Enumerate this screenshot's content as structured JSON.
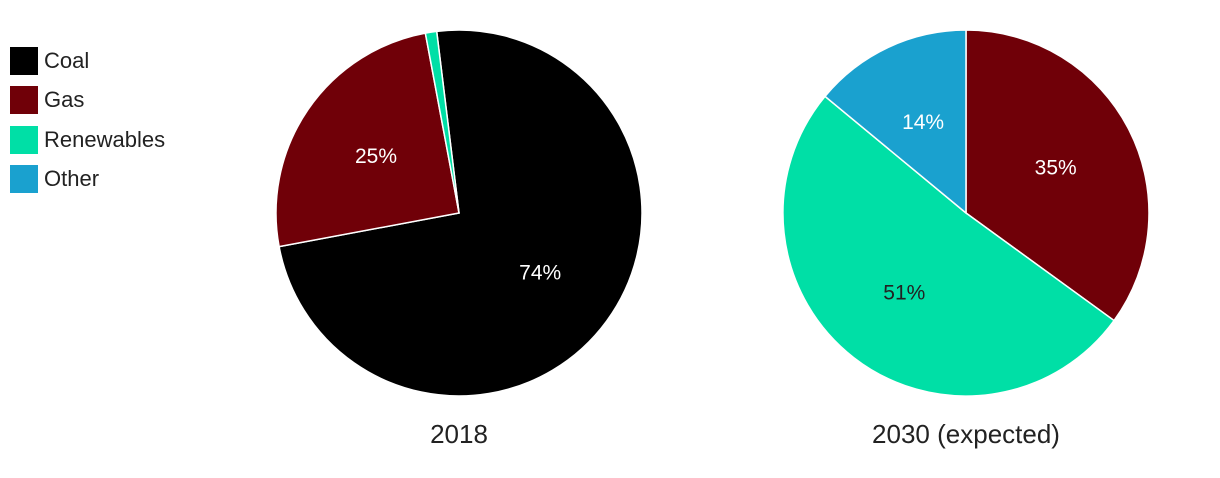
{
  "legend": [
    {
      "label": "Coal",
      "color": "#000000"
    },
    {
      "label": "Gas",
      "color": "#700008"
    },
    {
      "label": "Renewables",
      "color": "#00dfa6"
    },
    {
      "label": "Other",
      "color": "#1aa1cf"
    }
  ],
  "chart_data": [
    {
      "type": "pie",
      "title": "2018",
      "slices": [
        {
          "name": "Coal",
          "value": 74,
          "label": "74%"
        },
        {
          "name": "Gas",
          "value": 25,
          "label": "25%"
        },
        {
          "name": "Renewables",
          "value": 1,
          "label": ""
        },
        {
          "name": "Other",
          "value": 0,
          "label": ""
        }
      ]
    },
    {
      "type": "pie",
      "title": "2030 (expected)",
      "slices": [
        {
          "name": "Coal",
          "value": 0,
          "label": ""
        },
        {
          "name": "Gas",
          "value": 35,
          "label": "35%"
        },
        {
          "name": "Renewables",
          "value": 51,
          "label": "51%"
        },
        {
          "name": "Other",
          "value": 14,
          "label": "14%"
        }
      ]
    }
  ]
}
